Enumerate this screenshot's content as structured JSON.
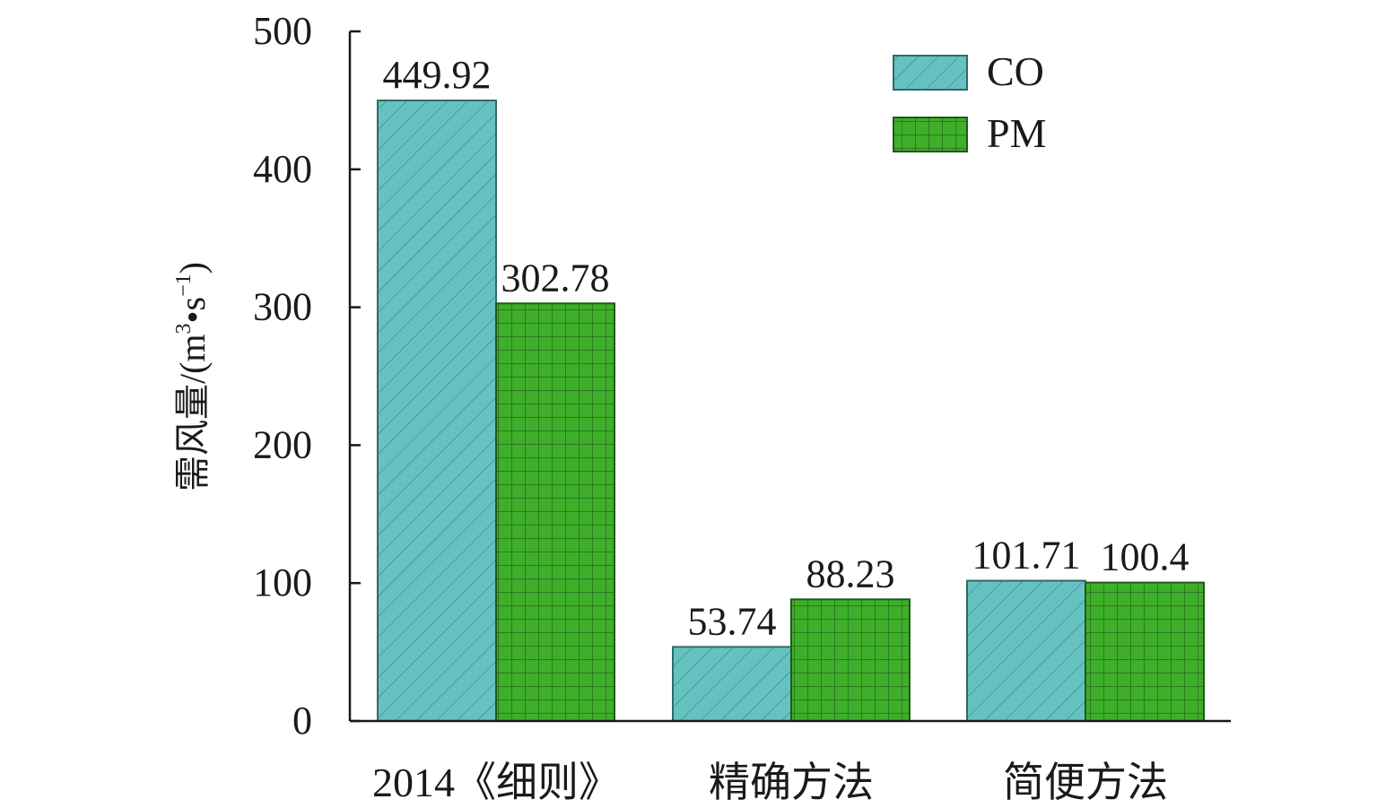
{
  "chart_data": {
    "type": "bar",
    "categories": [
      "2014《细则》",
      "精确方法",
      "简便方法"
    ],
    "series": [
      {
        "name": "CO",
        "values": [
          449.92,
          53.74,
          101.71
        ],
        "color": "#66c2c0",
        "pattern": "diagonal-hatch"
      },
      {
        "name": "PM",
        "values": [
          302.78,
          88.23,
          100.4
        ],
        "color": "#3fae2a",
        "pattern": "grid"
      }
    ],
    "data_labels": [
      [
        "449.92",
        "53.74",
        "101.71"
      ],
      [
        "302.78",
        "88.23",
        "100.4"
      ]
    ],
    "ylabel": "需风量/(m³•s⁻¹)",
    "ylabel_parts": {
      "prefix": "需风量/(m",
      "sup1": "3",
      "mid": "•s",
      "sup2": "−1",
      "suffix": ")"
    },
    "ylim": [
      0,
      500
    ],
    "yticks": [
      0,
      100,
      200,
      300,
      400,
      500
    ],
    "ytick_labels": [
      "0",
      "100",
      "200",
      "300",
      "400",
      "500"
    ],
    "legend_position": "top-right",
    "grid": false
  }
}
